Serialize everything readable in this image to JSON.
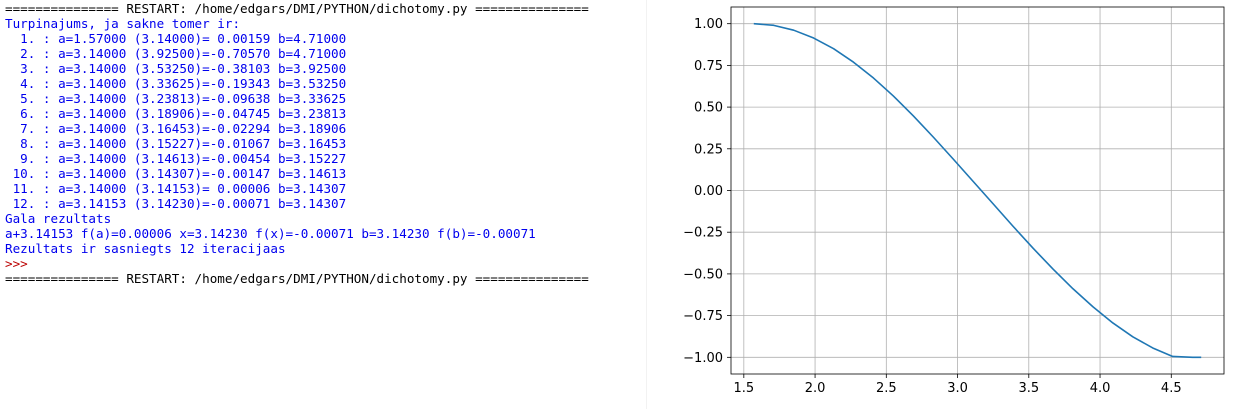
{
  "shell": {
    "lines": [
      {
        "text": "=============== RESTART: /home/edgars/DMI/PYTHON/dichotomy.py ===============",
        "color": "#000000"
      },
      {
        "text": "Turpinajums, ja sakne tomer ir:",
        "color": "#0000ee"
      },
      {
        "text": "  1. : a=1.57000 (3.14000)= 0.00159 b=4.71000",
        "color": "#0000ee"
      },
      {
        "text": "  2. : a=3.14000 (3.92500)=-0.70570 b=4.71000",
        "color": "#0000ee"
      },
      {
        "text": "  3. : a=3.14000 (3.53250)=-0.38103 b=3.92500",
        "color": "#0000ee"
      },
      {
        "text": "  4. : a=3.14000 (3.33625)=-0.19343 b=3.53250",
        "color": "#0000ee"
      },
      {
        "text": "  5. : a=3.14000 (3.23813)=-0.09638 b=3.33625",
        "color": "#0000ee"
      },
      {
        "text": "  6. : a=3.14000 (3.18906)=-0.04745 b=3.23813",
        "color": "#0000ee"
      },
      {
        "text": "  7. : a=3.14000 (3.16453)=-0.02294 b=3.18906",
        "color": "#0000ee"
      },
      {
        "text": "  8. : a=3.14000 (3.15227)=-0.01067 b=3.16453",
        "color": "#0000ee"
      },
      {
        "text": "  9. : a=3.14000 (3.14613)=-0.00454 b=3.15227",
        "color": "#0000ee"
      },
      {
        "text": " 10. : a=3.14000 (3.14307)=-0.00147 b=3.14613",
        "color": "#0000ee"
      },
      {
        "text": " 11. : a=3.14000 (3.14153)= 0.00006 b=3.14307",
        "color": "#0000ee"
      },
      {
        "text": " 12. : a=3.14153 (3.14230)=-0.00071 b=3.14307",
        "color": "#0000ee"
      },
      {
        "text": "Gala rezultats",
        "color": "#0000ee"
      },
      {
        "text": "a+3.14153 f(a)=0.00006 x=3.14230 f(x)=-0.00071 b=3.14230 f(b)=-0.00071",
        "color": "#0000ee"
      },
      {
        "text": "Rezultats ir sasniegts 12 iteracijaas",
        "color": "#0000ee"
      },
      {
        "text": ">>>",
        "color": "#bb0000"
      },
      {
        "text": "=============== RESTART: /home/edgars/DMI/PYTHON/dichotomy.py ===============",
        "color": "#000000"
      }
    ]
  },
  "chart_data": {
    "type": "line",
    "title": "",
    "xlabel": "",
    "ylabel": "",
    "xlim": [
      1.41,
      4.87
    ],
    "ylim": [
      -1.1,
      1.1
    ],
    "grid": true,
    "line_color": "#1f77b4",
    "x_ticks": [
      1.5,
      2.0,
      2.5,
      3.0,
      3.5,
      4.0,
      4.5
    ],
    "x_tick_labels": [
      "1.5",
      "2.0",
      "2.5",
      "3.0",
      "3.5",
      "4.0",
      "4.5"
    ],
    "y_ticks": [
      1.0,
      0.75,
      0.5,
      0.25,
      0.0,
      -0.25,
      -0.5,
      -0.75,
      -1.0
    ],
    "y_tick_labels": [
      "1.00",
      "0.75",
      "0.50",
      "0.25",
      "0.00",
      "−0.25",
      "−0.50",
      "−0.75",
      "−1.00"
    ],
    "series": [
      {
        "x": [
          1.57,
          1.71,
          1.85,
          1.99,
          2.13,
          2.27,
          2.41,
          2.55,
          2.69,
          2.83,
          2.97,
          3.11,
          3.25,
          3.39,
          3.53,
          3.67,
          3.81,
          3.95,
          4.09,
          4.23,
          4.37,
          4.51,
          4.65,
          4.71
        ],
        "y": [
          1.0,
          0.99,
          0.961,
          0.914,
          0.85,
          0.769,
          0.674,
          0.566,
          0.447,
          0.32,
          0.188,
          0.054,
          -0.08,
          -0.215,
          -0.346,
          -0.471,
          -0.589,
          -0.697,
          -0.794,
          -0.877,
          -0.944,
          -0.995,
          -1.0,
          -1.0
        ]
      }
    ]
  }
}
